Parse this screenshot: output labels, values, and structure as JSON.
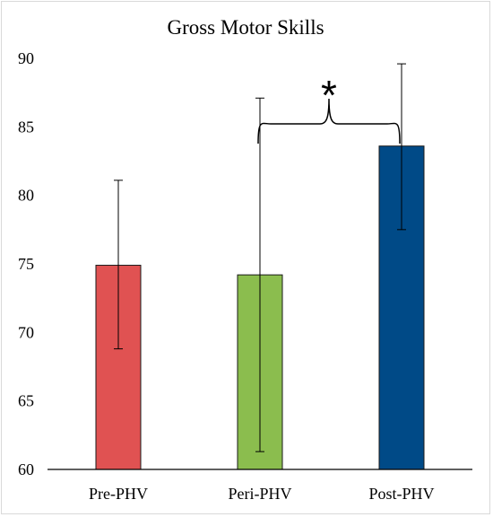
{
  "chart_data": {
    "type": "bar",
    "title": "Gross Motor Skills",
    "xlabel": "",
    "ylabel": "",
    "categories": [
      "Pre-PHV",
      "Peri-PHV",
      "Post-PHV"
    ],
    "values": [
      74.9,
      74.2,
      83.6
    ],
    "error_low": [
      68.8,
      61.3,
      77.5
    ],
    "error_high": [
      81.1,
      87.1,
      89.6
    ],
    "colors": [
      "#e05252",
      "#8bbd4e",
      "#004a87"
    ],
    "ylim": [
      60,
      90
    ],
    "yticks": [
      "60",
      "65",
      "70",
      "75",
      "80",
      "85",
      "90"
    ],
    "grid": false,
    "annotation": {
      "text": "*",
      "between": [
        "Peri-PHV",
        "Post-PHV"
      ]
    }
  }
}
